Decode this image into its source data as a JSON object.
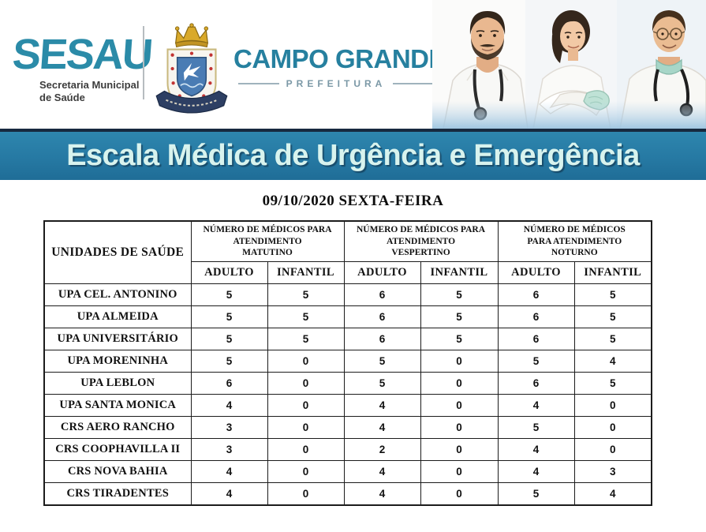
{
  "header": {
    "sesau_logo": {
      "name": "SESAU",
      "subtitle": "Secretaria Municipal\nde Saúde",
      "color": "#2b8ba8"
    },
    "city_logo": {
      "name": "CAMPO GRANDE",
      "department": "PREFEITURA",
      "color": "#26809f"
    },
    "crest_icon": "campo-grande-coat-of-arms",
    "photo": "three-doctors"
  },
  "banner": {
    "title": "Escala Médica de Urgência e Emergência",
    "bg_color": "#2679a3",
    "text_color": "#d8f3ee"
  },
  "date_heading": "09/10/2020 SEXTA-FEIRA",
  "table": {
    "unit_column_header": "UNIDADES DE SAÚDE",
    "group_headers": [
      "NÚMERO DE MÉDICOS PARA\nATENDIMENTO\nMATUTINO",
      "NÚMERO DE MÉDICOS PARA\nATENDIMENTO\nVESPERTINO",
      "NÚMERO DE MÉDICOS\nPARA ATENDIMENTO\nNOTURNO"
    ],
    "subheaders": [
      "ADULTO",
      "INFANTIL"
    ],
    "rows": [
      {
        "unit": "UPA CEL. ANTONINO",
        "values": [
          "5",
          "5",
          "6",
          "5",
          "6",
          "5"
        ]
      },
      {
        "unit": "UPA ALMEIDA",
        "values": [
          "5",
          "5",
          "6",
          "5",
          "6",
          "5"
        ]
      },
      {
        "unit": "UPA UNIVERSITÁRIO",
        "values": [
          "5",
          "5",
          "6",
          "5",
          "6",
          "5"
        ]
      },
      {
        "unit": "UPA MORENINHA",
        "values": [
          "5",
          "0",
          "5",
          "0",
          "5",
          "4"
        ]
      },
      {
        "unit": "UPA LEBLON",
        "values": [
          "6",
          "0",
          "5",
          "0",
          "6",
          "5"
        ]
      },
      {
        "unit": "UPA SANTA MONICA",
        "values": [
          "4",
          "0",
          "4",
          "0",
          "4",
          "0"
        ]
      },
      {
        "unit": "CRS AERO RANCHO",
        "values": [
          "3",
          "0",
          "4",
          "0",
          "5",
          "0"
        ]
      },
      {
        "unit": "CRS COOPHAVILLA II",
        "values": [
          "3",
          "0",
          "2",
          "0",
          "4",
          "0"
        ]
      },
      {
        "unit": "CRS NOVA BAHIA",
        "values": [
          "4",
          "0",
          "4",
          "0",
          "4",
          "3"
        ]
      },
      {
        "unit": "CRS TIRADENTES",
        "values": [
          "4",
          "0",
          "4",
          "0",
          "5",
          "4"
        ]
      }
    ]
  }
}
